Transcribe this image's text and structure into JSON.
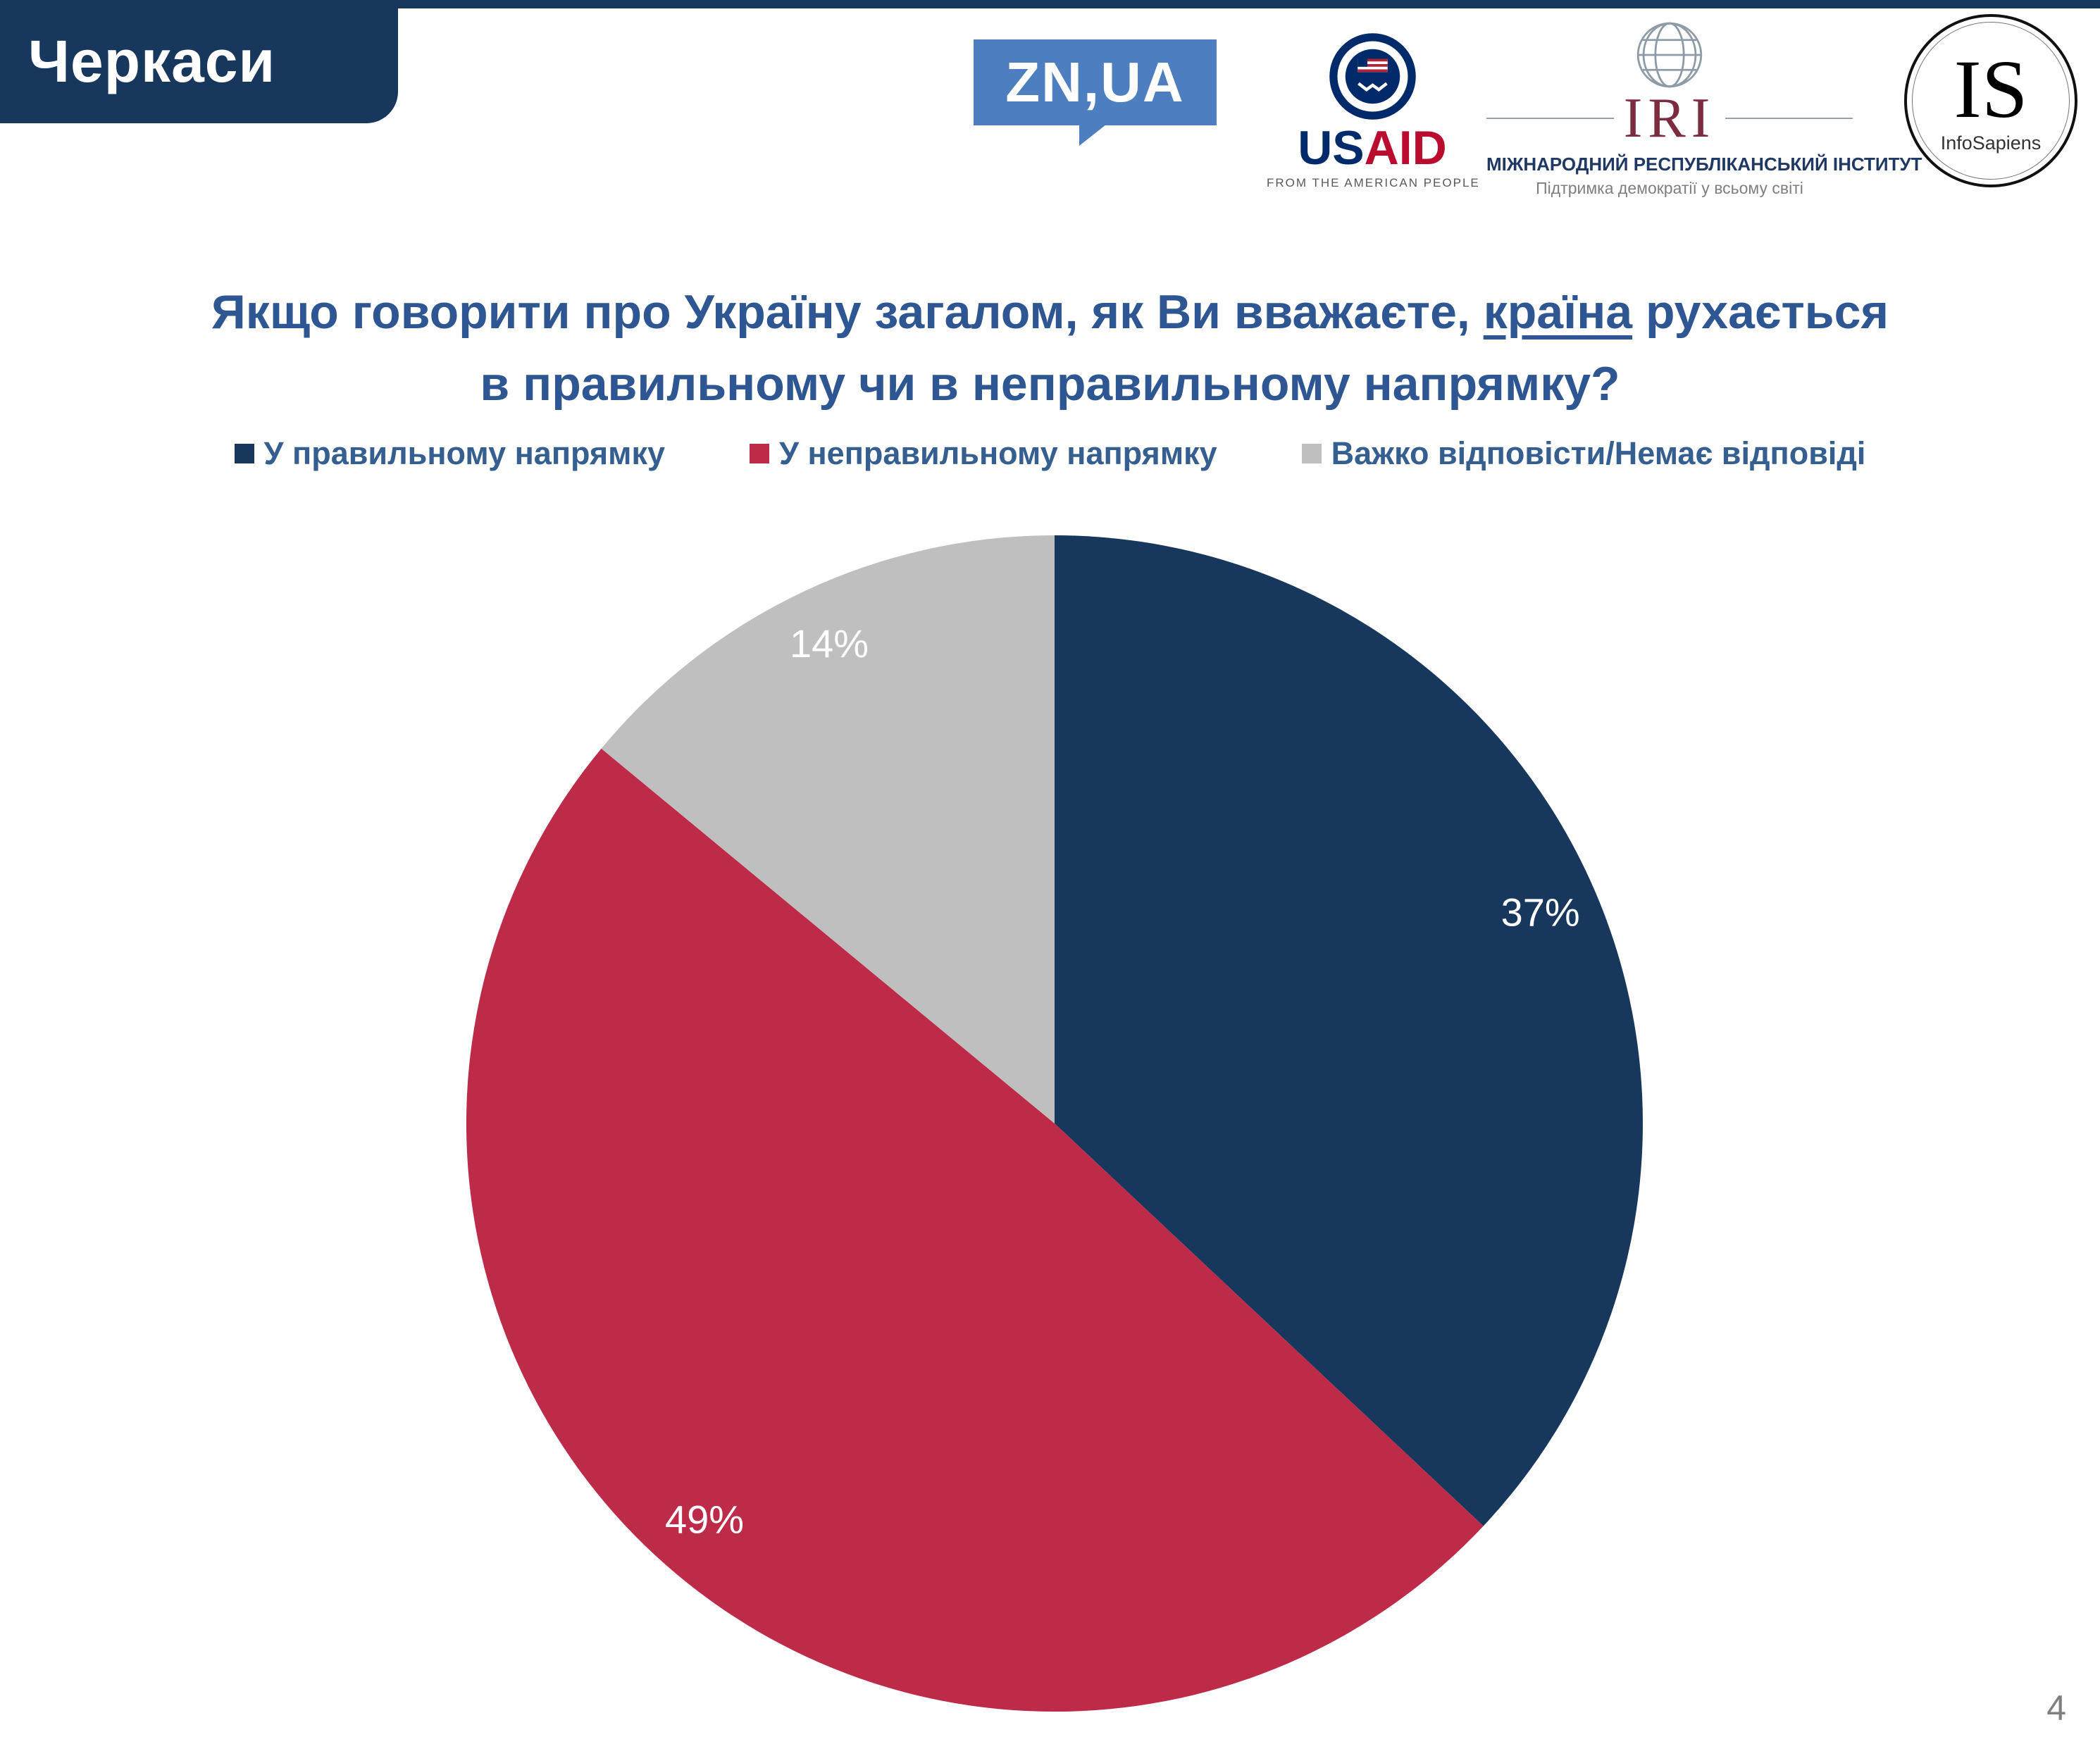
{
  "header": {
    "region_label": "Черкаси",
    "page_number": "4"
  },
  "logos": {
    "znua": {
      "text": "ZN,UA"
    },
    "usaid": {
      "us": "US",
      "aid": "AID",
      "tagline": "FROM THE AMERICAN PEOPLE"
    },
    "iri": {
      "acronym": "IRI",
      "name": "МІЖНАРОДНИЙ РЕСПУБЛІКАНСЬКИЙ ІНСТИТУТ",
      "tagline": "Підтримка демократії у всьому світі"
    },
    "infosapiens": {
      "acronym": "IS",
      "name": "InfoSapiens"
    }
  },
  "title": {
    "pre": "Якщо говорити про Україну загалом, як Ви вважаєте, ",
    "underlined": "країна",
    "post": " рухається",
    "line2": "в правильному чи в неправильному напрямку?"
  },
  "chart_data": {
    "type": "pie",
    "title": "Якщо говорити про Україну загалом, як Ви вважаєте, країна рухається в правильному чи в неправильному напрямку?",
    "labels": [
      "У правильному напрямку",
      "У неправильному напрямку",
      "Важко відповісти/Немає відповіді"
    ],
    "values": [
      37,
      49,
      14
    ],
    "value_labels": [
      "37%",
      "49%",
      "14%"
    ],
    "colors": [
      "#17375D",
      "#BE2B49",
      "#BFBFBF"
    ],
    "label_color": "#FFFFFF",
    "legend_text_color": "#365F91",
    "start_angle_deg": 0,
    "direction": "clockwise",
    "legend_position": "top",
    "label_radius_fraction": 0.9
  }
}
